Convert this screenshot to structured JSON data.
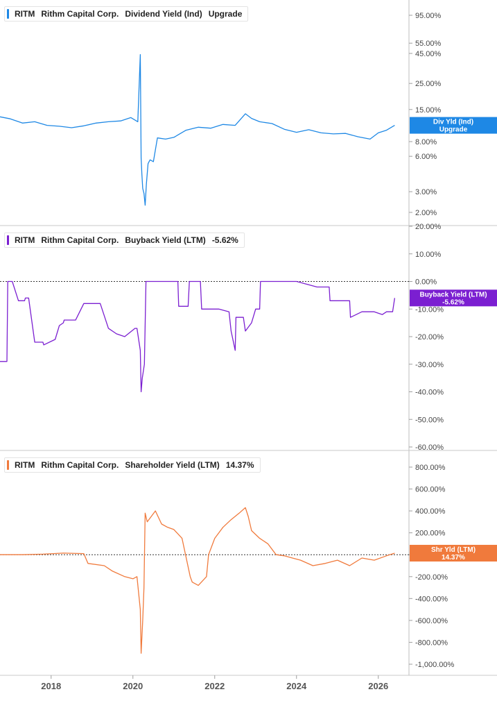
{
  "colors": {
    "dividend": "#1e88e5",
    "buyback": "#7b1fd1",
    "shareholder": "#f07a3c",
    "grid": "#dcdcdc",
    "axis_text": "#444444"
  },
  "chart_data": [
    {
      "type": "line",
      "ticker": "RITM",
      "company": "Rithm Capital Corp.",
      "metric": "Dividend Yield (Ind)",
      "value_label": "Upgrade",
      "badge_lines": [
        "Div Yld (Ind)",
        "Upgrade"
      ],
      "y_scale": "log",
      "ylim": [
        1.8,
        120
      ],
      "y_ticks": [
        95,
        55,
        45,
        25,
        15,
        8,
        6,
        3,
        2
      ],
      "y_tick_labels": [
        "95.00%",
        "55.00%",
        "45.00%",
        "25.00%",
        "15.00%",
        "8.00%",
        "6.00%",
        "3.00%",
        "2.00%"
      ],
      "reference_line": null,
      "x": [
        2016.75,
        2017.0,
        2017.3,
        2017.6,
        2017.9,
        2018.2,
        2018.5,
        2018.8,
        2019.1,
        2019.4,
        2019.7,
        2019.95,
        2020.12,
        2020.18,
        2020.2,
        2020.22,
        2020.24,
        2020.27,
        2020.3,
        2020.33,
        2020.37,
        2020.42,
        2020.5,
        2020.6,
        2020.8,
        2021.0,
        2021.3,
        2021.6,
        2021.9,
        2022.2,
        2022.5,
        2022.75,
        2022.9,
        2023.1,
        2023.4,
        2023.7,
        2024.0,
        2024.3,
        2024.6,
        2024.9,
        2025.2,
        2025.5,
        2025.8,
        2026.0,
        2026.2,
        2026.4
      ],
      "series": [
        {
          "values": [
            13,
            12.5,
            11.5,
            11.8,
            11,
            10.8,
            10.5,
            10.9,
            11.5,
            11.8,
            12,
            12.8,
            11.8,
            44,
            5.8,
            4.2,
            3.2,
            2.9,
            2.3,
            3.5,
            5.2,
            5.6,
            5.4,
            8.6,
            8.4,
            8.7,
            10,
            10.6,
            10.4,
            11.2,
            11,
            13.8,
            12.6,
            11.8,
            11.4,
            10.2,
            9.6,
            10.1,
            9.5,
            9.3,
            9.4,
            8.8,
            8.4,
            9.5,
            10,
            11
          ]
        }
      ]
    },
    {
      "type": "line",
      "ticker": "RITM",
      "company": "Rithm Capital Corp.",
      "metric": "Buyback Yield (LTM)",
      "value_label": "-5.62%",
      "badge_lines": [
        "Buyback Yield (LTM)",
        "-5.62%"
      ],
      "y_scale": "linear",
      "ylim": [
        -60,
        20
      ],
      "y_ticks": [
        20,
        10,
        0,
        -10,
        -20,
        -30,
        -40,
        -50,
        -60
      ],
      "y_tick_labels": [
        "20.00%",
        "10.00%",
        "0.00%",
        "-10.00%",
        "-20.00%",
        "-30.00%",
        "-40.00%",
        "-50.00%",
        "-60.00%"
      ],
      "reference_line": 0,
      "x": [
        2016.75,
        2016.92,
        2016.94,
        2017.05,
        2017.2,
        2017.35,
        2017.37,
        2017.45,
        2017.6,
        2017.8,
        2017.82,
        2018.1,
        2018.2,
        2018.3,
        2018.32,
        2018.6,
        2018.8,
        2018.95,
        2019.0,
        2019.2,
        2019.4,
        2019.6,
        2019.8,
        2020.05,
        2020.1,
        2020.18,
        2020.2,
        2020.23,
        2020.26,
        2020.28,
        2020.32,
        2020.34,
        2020.9,
        2021.1,
        2021.12,
        2021.35,
        2021.38,
        2021.65,
        2021.68,
        2021.9,
        2022.1,
        2022.35,
        2022.4,
        2022.5,
        2022.52,
        2022.7,
        2022.75,
        2022.9,
        2023.0,
        2023.1,
        2023.12,
        2023.5,
        2024.0,
        2024.5,
        2024.8,
        2024.82,
        2025.1,
        2025.3,
        2025.32,
        2025.6,
        2025.9,
        2026.1,
        2026.2,
        2026.35,
        2026.4
      ],
      "series": [
        {
          "values": [
            -29,
            -29,
            0,
            0,
            -7,
            -7,
            -6,
            -6,
            -22,
            -22,
            -23,
            -21,
            -16,
            -15,
            -14,
            -14,
            -8,
            -8,
            -8,
            -8,
            -17,
            -19,
            -20,
            -17,
            -17,
            -25,
            -40,
            -35,
            -32,
            -30,
            0,
            0,
            0,
            0,
            -9,
            -9,
            0,
            0,
            -10,
            -10,
            -10,
            -11,
            -18,
            -25,
            -13,
            -13,
            -18,
            -15,
            -10,
            -10,
            0,
            0,
            0,
            -2,
            -2,
            -7,
            -7,
            -7,
            -13,
            -11,
            -11,
            -12,
            -11,
            -11,
            -6
          ]
        }
      ]
    },
    {
      "type": "line",
      "ticker": "RITM",
      "company": "Rithm Capital Corp.",
      "metric": "Shareholder Yield (LTM)",
      "value_label": "14.37%",
      "badge_lines": [
        "Shr Yld (LTM)",
        "14.37%"
      ],
      "y_scale": "linear",
      "ylim": [
        -1050,
        900
      ],
      "y_ticks": [
        800,
        600,
        400,
        200,
        0,
        -200,
        -400,
        -600,
        -800,
        -1000
      ],
      "y_tick_labels": [
        "800.00%",
        "600.00%",
        "400.00%",
        "200.00%",
        "0.00%",
        "-200.00%",
        "-400.00%",
        "-600.00%",
        "-800.00%",
        "-1,000.00%"
      ],
      "reference_line": 0,
      "x": [
        2016.75,
        2017.3,
        2017.8,
        2018.3,
        2018.8,
        2018.9,
        2019.3,
        2019.5,
        2019.8,
        2020.0,
        2020.1,
        2020.18,
        2020.2,
        2020.24,
        2020.27,
        2020.3,
        2020.35,
        2020.45,
        2020.55,
        2020.7,
        2020.85,
        2021.0,
        2021.2,
        2021.4,
        2021.45,
        2021.6,
        2021.8,
        2021.85,
        2022.0,
        2022.2,
        2022.4,
        2022.6,
        2022.75,
        2022.82,
        2022.9,
        2023.1,
        2023.3,
        2023.5,
        2023.7,
        2023.9,
        2024.1,
        2024.4,
        2024.7,
        2025.0,
        2025.3,
        2025.6,
        2025.9,
        2026.2,
        2026.4
      ],
      "series": [
        {
          "values": [
            0,
            0,
            5,
            15,
            10,
            -80,
            -100,
            -150,
            -200,
            -220,
            -200,
            -500,
            -900,
            -600,
            -300,
            380,
            300,
            350,
            400,
            280,
            250,
            230,
            150,
            -200,
            -250,
            -280,
            -200,
            0,
            150,
            250,
            320,
            380,
            430,
            350,
            220,
            150,
            100,
            0,
            -10,
            -30,
            -50,
            -100,
            -80,
            -50,
            -100,
            -30,
            -50,
            -10,
            14
          ]
        }
      ]
    }
  ],
  "x_axis": {
    "ticks": [
      2018,
      2020,
      2022,
      2024,
      2026
    ],
    "labels": [
      "2018",
      "2020",
      "2022",
      "2024",
      "2026"
    ],
    "range": [
      2016.75,
      2026.75
    ]
  }
}
